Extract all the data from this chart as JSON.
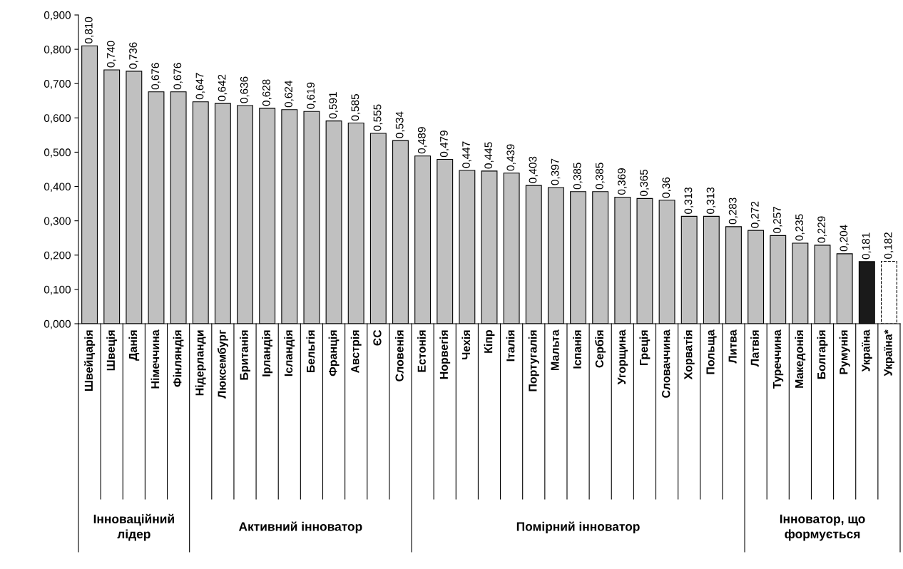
{
  "chart_data": {
    "type": "bar",
    "categories": [
      "Швейцарія",
      "Швеція",
      "Данія",
      "Німеччина",
      "Фінляндія",
      "Нідерланди",
      "Люксембург",
      "Британія",
      "Ірландія",
      "Ісландія",
      "Бельгія",
      "Франція",
      "Австрія",
      "ЄС",
      "Словенія",
      "Естонія",
      "Норвегія",
      "Чехія",
      "Кіпр",
      "Італія",
      "Португалія",
      "Мальта",
      "Іспанія",
      "Сербія",
      "Угорщина",
      "Греція",
      "Словаччина",
      "Хорватія",
      "Польща",
      "Литва",
      "Латвія",
      "Туреччина",
      "Македонія",
      "Болгарія",
      "Румунія",
      "Україна",
      "Україна*"
    ],
    "values": [
      0.81,
      0.74,
      0.736,
      0.676,
      0.676,
      0.647,
      0.642,
      0.636,
      0.628,
      0.624,
      0.619,
      0.591,
      0.585,
      0.555,
      0.534,
      0.489,
      0.479,
      0.447,
      0.445,
      0.439,
      0.403,
      0.397,
      0.385,
      0.385,
      0.369,
      0.365,
      0.36,
      0.313,
      0.313,
      0.283,
      0.272,
      0.257,
      0.235,
      0.229,
      0.204,
      0.181,
      0.182
    ],
    "value_labels": [
      "0,810",
      "0,740",
      "0,736",
      "0,676",
      "0,676",
      "0,647",
      "0,642",
      "0,636",
      "0,628",
      "0,624",
      "0,619",
      "0,591",
      "0,585",
      "0,555",
      "0,534",
      "0,489",
      "0,479",
      "0,447",
      "0,445",
      "0,439",
      "0,403",
      "0,397",
      "0,385",
      "0,385",
      "0,369",
      "0,365",
      "0,36",
      "0,313",
      "0,313",
      "0,283",
      "0,272",
      "0,257",
      "0,235",
      "0,229",
      "0,204",
      "0,181",
      "0,182"
    ],
    "colors": [
      "#c0c0c0",
      "#c0c0c0",
      "#c0c0c0",
      "#c0c0c0",
      "#c0c0c0",
      "#c0c0c0",
      "#c0c0c0",
      "#c0c0c0",
      "#c0c0c0",
      "#c0c0c0",
      "#c0c0c0",
      "#c0c0c0",
      "#c0c0c0",
      "#c0c0c0",
      "#c0c0c0",
      "#c0c0c0",
      "#c0c0c0",
      "#c0c0c0",
      "#c0c0c0",
      "#c0c0c0",
      "#c0c0c0",
      "#c0c0c0",
      "#c0c0c0",
      "#c0c0c0",
      "#c0c0c0",
      "#c0c0c0",
      "#c0c0c0",
      "#c0c0c0",
      "#c0c0c0",
      "#c0c0c0",
      "#c0c0c0",
      "#c0c0c0",
      "#c0c0c0",
      "#c0c0c0",
      "#c0c0c0",
      "#1a1a1a",
      "#ffffff"
    ],
    "ylim": [
      0,
      0.9
    ],
    "yticks": [
      {
        "value": 0,
        "label": "0,000"
      },
      {
        "value": 0.1,
        "label": "0,100"
      },
      {
        "value": 0.2,
        "label": "0,200"
      },
      {
        "value": 0.3,
        "label": "0,300"
      },
      {
        "value": 0.4,
        "label": "0,400"
      },
      {
        "value": 0.5,
        "label": "0,500"
      },
      {
        "value": 0.6,
        "label": "0,600"
      },
      {
        "value": 0.7,
        "label": "0,700"
      },
      {
        "value": 0.8,
        "label": "0,800"
      },
      {
        "value": 0.9,
        "label": "0,900"
      }
    ],
    "grid": false,
    "annotations": [
      "Інноваційний лідер",
      "Активний інноватор",
      "Помірний інноватор",
      "Інноватор, що формується"
    ]
  }
}
